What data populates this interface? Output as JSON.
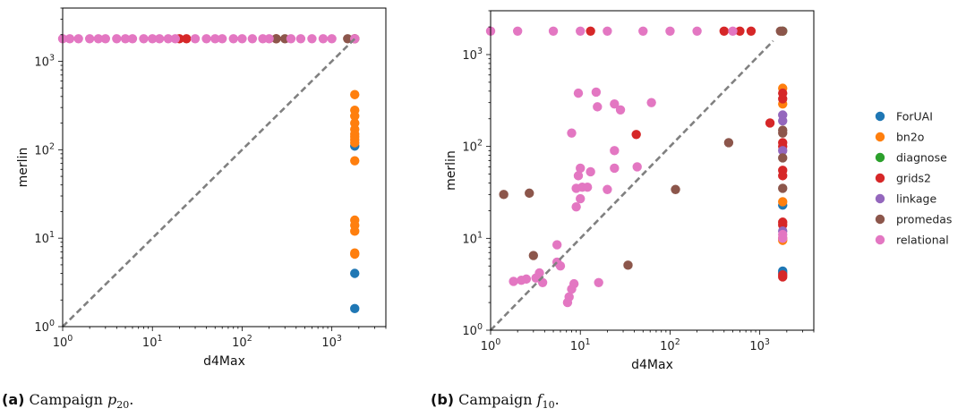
{
  "captions": [
    {
      "label": "(a)",
      "text": "Campaign ",
      "var": "p",
      "sub": "20",
      "end": "."
    },
    {
      "label": "(b)",
      "text": "Campaign ",
      "var": "f",
      "sub": "10",
      "end": "."
    }
  ],
  "colors": {
    "ForUAI": "#1f77b4",
    "bn2o": "#ff7f0e",
    "diagnose": "#2ca02c",
    "grids2": "#d62728",
    "linkage": "#9467bd",
    "promedas": "#8c564b",
    "relational": "#e377c2",
    "diagonal": "#808080"
  },
  "chart_data": [
    {
      "type": "scatter",
      "xlabel": "d4Max",
      "ylabel": "merlin",
      "xscale": "log",
      "yscale": "log",
      "xlim": [
        1,
        4000
      ],
      "ylim": [
        1,
        4000
      ],
      "xticks": [
        {
          "exp": "0",
          "v": 1
        },
        {
          "exp": "1",
          "v": 10
        },
        {
          "exp": "2",
          "v": 100
        },
        {
          "exp": "3",
          "v": 1000
        }
      ],
      "yticks": [
        {
          "exp": "0",
          "v": 1
        },
        {
          "exp": "1",
          "v": 10
        },
        {
          "exp": "2",
          "v": 100
        },
        {
          "exp": "3",
          "v": 1000
        }
      ],
      "diagonal": true,
      "legend": false,
      "series": [
        {
          "name": "ForUAI",
          "points": [
            [
              1800,
              4
            ],
            [
              1800,
              1.6
            ],
            [
              1800,
              110
            ]
          ]
        },
        {
          "name": "bn2o",
          "points": [
            [
              1800,
              420
            ],
            [
              1800,
              280
            ],
            [
              1800,
              240
            ],
            [
              1800,
              200
            ],
            [
              1800,
              170
            ],
            [
              1800,
              150
            ],
            [
              1800,
              140
            ],
            [
              1800,
              130
            ],
            [
              1800,
              120
            ],
            [
              1800,
              75
            ],
            [
              1800,
              16
            ],
            [
              1800,
              14
            ],
            [
              1800,
              12
            ],
            [
              1800,
              6.8
            ],
            [
              1800,
              6.6
            ]
          ]
        },
        {
          "name": "grids2",
          "points": [
            [
              20,
              1800
            ],
            [
              24,
              1800
            ],
            [
              240,
              1800
            ],
            [
              1800,
              1800
            ]
          ]
        },
        {
          "name": "promedas",
          "points": [
            [
              240,
              1800
            ],
            [
              300,
              1800
            ],
            [
              1500,
              1800
            ],
            [
              1800,
              1800
            ]
          ]
        },
        {
          "name": "relational",
          "points": [
            [
              1,
              1800
            ],
            [
              1.2,
              1800
            ],
            [
              1.5,
              1800
            ],
            [
              2,
              1800
            ],
            [
              2.5,
              1800
            ],
            [
              3,
              1800
            ],
            [
              4,
              1800
            ],
            [
              5,
              1800
            ],
            [
              6,
              1800
            ],
            [
              8,
              1800
            ],
            [
              10,
              1800
            ],
            [
              12,
              1800
            ],
            [
              15,
              1800
            ],
            [
              18,
              1800
            ],
            [
              30,
              1800
            ],
            [
              40,
              1800
            ],
            [
              50,
              1800
            ],
            [
              60,
              1800
            ],
            [
              80,
              1800
            ],
            [
              100,
              1800
            ],
            [
              130,
              1800
            ],
            [
              170,
              1800
            ],
            [
              200,
              1800
            ],
            [
              350,
              1800
            ],
            [
              450,
              1800
            ],
            [
              600,
              1800
            ],
            [
              800,
              1800
            ],
            [
              1000,
              1800
            ],
            [
              1800,
              1800
            ]
          ]
        }
      ]
    },
    {
      "type": "scatter",
      "xlabel": "d4Max",
      "ylabel": "merlin",
      "xscale": "log",
      "yscale": "log",
      "xlim": [
        1,
        4000
      ],
      "ylim": [
        1,
        3000
      ],
      "xticks": [
        {
          "exp": "0",
          "v": 1
        },
        {
          "exp": "1",
          "v": 10
        },
        {
          "exp": "2",
          "v": 100
        },
        {
          "exp": "3",
          "v": 1000
        }
      ],
      "yticks": [
        {
          "exp": "0",
          "v": 1
        },
        {
          "exp": "1",
          "v": 10
        },
        {
          "exp": "2",
          "v": 100
        },
        {
          "exp": "3",
          "v": 1000
        }
      ],
      "diagonal": true,
      "legend": "right",
      "series": [
        {
          "name": "ForUAI",
          "points": [
            [
              1800,
              23
            ],
            [
              1800,
              4.4
            ],
            [
              1800,
              4.2
            ]
          ]
        },
        {
          "name": "bn2o",
          "points": [
            [
              1800,
              430
            ],
            [
              1800,
              290
            ],
            [
              1800,
              25
            ],
            [
              1800,
              10
            ],
            [
              1800,
              9.5
            ]
          ]
        },
        {
          "name": "diagnose",
          "points": [
            [
              1800,
              1800
            ]
          ]
        },
        {
          "name": "grids2",
          "points": [
            [
              13,
              1800
            ],
            [
              400,
              1800
            ],
            [
              600,
              1800
            ],
            [
              800,
              1800
            ],
            [
              42,
              135
            ],
            [
              1300,
              180
            ],
            [
              1800,
              380
            ],
            [
              1800,
              330
            ],
            [
              1800,
              110
            ],
            [
              1800,
              100
            ],
            [
              1800,
              55
            ],
            [
              1800,
              48
            ],
            [
              1800,
              15
            ],
            [
              1800,
              14
            ],
            [
              1800,
              4
            ],
            [
              1800,
              3.8
            ]
          ]
        },
        {
          "name": "linkage",
          "points": [
            [
              1800,
              220
            ],
            [
              1800,
              190
            ],
            [
              1800,
              90
            ],
            [
              1800,
              12
            ]
          ]
        },
        {
          "name": "promedas",
          "points": [
            [
              1.4,
              30
            ],
            [
              2.7,
              31
            ],
            [
              3,
              6.5
            ],
            [
              34,
              5.1
            ],
            [
              450,
              110
            ],
            [
              115,
              34
            ],
            [
              1700,
              1800
            ],
            [
              1800,
              1800
            ],
            [
              1800,
              150
            ],
            [
              1800,
              140
            ],
            [
              1800,
              75
            ],
            [
              1800,
              35
            ]
          ]
        },
        {
          "name": "relational",
          "points": [
            [
              1,
              1800
            ],
            [
              2,
              1800
            ],
            [
              5,
              1800
            ],
            [
              10,
              1800
            ],
            [
              20,
              1800
            ],
            [
              50,
              1800
            ],
            [
              100,
              1800
            ],
            [
              200,
              1800
            ],
            [
              500,
              1800
            ],
            [
              9.5,
              380
            ],
            [
              15,
              390
            ],
            [
              15.5,
              270
            ],
            [
              24,
              290
            ],
            [
              28,
              250
            ],
            [
              62,
              300
            ],
            [
              8,
              140
            ],
            [
              24,
              90
            ],
            [
              10,
              58
            ],
            [
              24,
              58
            ],
            [
              13,
              53
            ],
            [
              9.5,
              48
            ],
            [
              9,
              35
            ],
            [
              10.5,
              36
            ],
            [
              12,
              36
            ],
            [
              10,
              27
            ],
            [
              20,
              34
            ],
            [
              9,
              22
            ],
            [
              43,
              60
            ],
            [
              5.5,
              8.5
            ],
            [
              5.5,
              5.5
            ],
            [
              3.5,
              4.2
            ],
            [
              3.2,
              3.7
            ],
            [
              2.5,
              3.6
            ],
            [
              2.2,
              3.5
            ],
            [
              1.8,
              3.4
            ],
            [
              3.8,
              3.3
            ],
            [
              6,
              5
            ],
            [
              8.5,
              3.2
            ],
            [
              8,
              2.8
            ],
            [
              7.5,
              2.3
            ],
            [
              7.2,
              2
            ],
            [
              16,
              3.3
            ],
            [
              1800,
              11
            ],
            [
              1800,
              10
            ]
          ]
        }
      ]
    }
  ]
}
